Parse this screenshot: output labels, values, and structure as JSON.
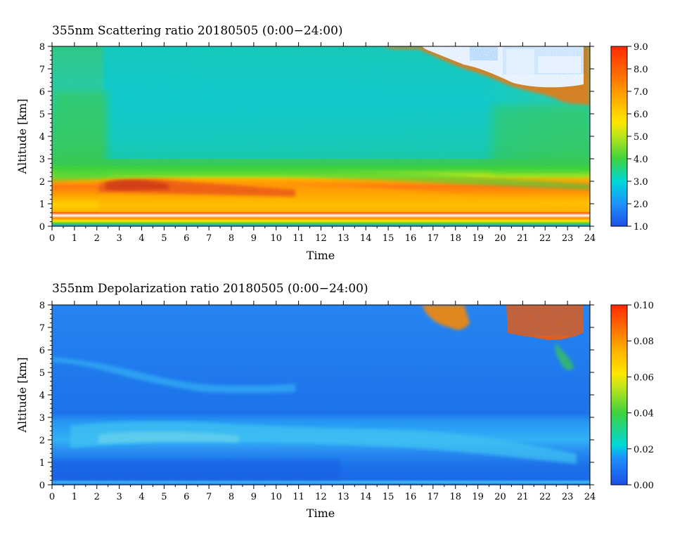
{
  "chart_data": [
    {
      "type": "heatmap",
      "title": "355nm Scattering ratio  20180505 (0:00−24:00)",
      "xlabel": "Time",
      "ylabel": "Altitude [km]",
      "xlim": [
        0,
        24
      ],
      "ylim": [
        0,
        8
      ],
      "x_ticks": [
        "0",
        "1",
        "2",
        "3",
        "4",
        "5",
        "6",
        "7",
        "8",
        "9",
        "10",
        "11",
        "12",
        "13",
        "14",
        "15",
        "16",
        "17",
        "18",
        "19",
        "20",
        "21",
        "22",
        "23",
        "24"
      ],
      "y_ticks": [
        "0",
        "1",
        "2",
        "3",
        "4",
        "5",
        "6",
        "7",
        "8"
      ],
      "colorbar": {
        "min": 1.0,
        "max": 9.0,
        "ticks": [
          "1.0",
          "2.0",
          "3.0",
          "4.0",
          "5.0",
          "6.0",
          "7.0",
          "8.0",
          "9.0"
        ]
      },
      "features": [
        {
          "region": "near-surface layer 0-0.6 km, all times",
          "value": 7.0
        },
        {
          "region": "aerosol layer 0.6-2.5 km, strongest around 2.5-6 h at 1.8 km",
          "value": 8.0
        },
        {
          "region": "free troposphere 3-8 km",
          "value": 3.0
        },
        {
          "region": "cloud at 6-8 km after 17 h",
          "value": 9.0
        }
      ]
    },
    {
      "type": "heatmap",
      "title": "355nm Depolarization ratio  20180505 (0:00−24:00)",
      "xlabel": "Time",
      "ylabel": "Altitude [km]",
      "xlim": [
        0,
        24
      ],
      "ylim": [
        0,
        8
      ],
      "x_ticks": [
        "0",
        "1",
        "2",
        "3",
        "4",
        "5",
        "6",
        "7",
        "8",
        "9",
        "10",
        "11",
        "12",
        "13",
        "14",
        "15",
        "16",
        "17",
        "18",
        "19",
        "20",
        "21",
        "22",
        "23",
        "24"
      ],
      "y_ticks": [
        "0",
        "1",
        "2",
        "3",
        "4",
        "5",
        "6",
        "7",
        "8"
      ],
      "colorbar": {
        "min": 0.0,
        "max": 0.1,
        "ticks": [
          "0.00",
          "0.02",
          "0.04",
          "0.06",
          "0.08",
          "0.10"
        ]
      },
      "features": [
        {
          "region": "background 0-8 km",
          "value": 0.01
        },
        {
          "region": "aerosol layer around 2 km, 2-22 h",
          "value": 0.02
        },
        {
          "region": "elevated band descending from 5.5 to 4.5 km, 0-9 h",
          "value": 0.02
        },
        {
          "region": "cloud at 6-8 km after 17 h",
          "value": 0.1
        }
      ]
    }
  ]
}
